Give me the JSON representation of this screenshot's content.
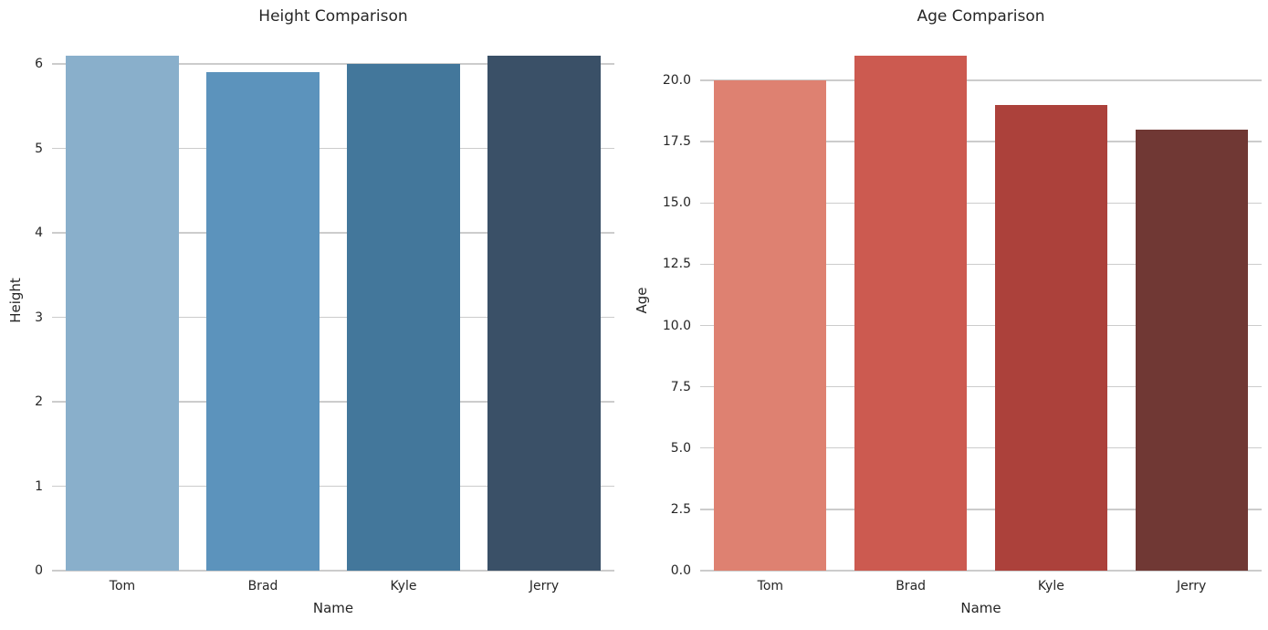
{
  "figure": {
    "background": "#ffffff",
    "text_color": "#262626",
    "grid_color": "#cccccc"
  },
  "chart_data": [
    {
      "type": "bar",
      "title": "Height Comparison",
      "xlabel": "Name",
      "ylabel": "Height",
      "categories": [
        "Tom",
        "Brad",
        "Kyle",
        "Jerry"
      ],
      "values": [
        6.1,
        5.9,
        6.0,
        6.1
      ],
      "bar_colors": [
        "#89AFCB",
        "#5C93BC",
        "#43779B",
        "#3A5067"
      ],
      "ylim": [
        0,
        6.4
      ],
      "yticks": [
        0,
        1,
        2,
        3,
        4,
        5,
        6
      ],
      "ytick_labels": [
        "0",
        "1",
        "2",
        "3",
        "4",
        "5",
        "6"
      ],
      "grid": true,
      "legend": false
    },
    {
      "type": "bar",
      "title": "Age Comparison",
      "xlabel": "Name",
      "ylabel": "Age",
      "categories": [
        "Tom",
        "Brad",
        "Kyle",
        "Jerry"
      ],
      "values": [
        20,
        21,
        19,
        18
      ],
      "bar_colors": [
        "#DE8171",
        "#CC5A50",
        "#AC413B",
        "#703834"
      ],
      "ylim": [
        0,
        22.05
      ],
      "yticks": [
        0,
        2.5,
        5,
        7.5,
        10,
        12.5,
        15,
        17.5,
        20
      ],
      "ytick_labels": [
        "0.0",
        "2.5",
        "5.0",
        "7.5",
        "10.0",
        "12.5",
        "15.0",
        "17.5",
        "20.0"
      ],
      "grid": true,
      "legend": false
    }
  ]
}
